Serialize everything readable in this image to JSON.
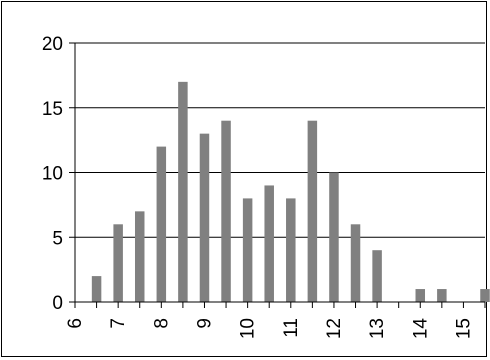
{
  "chart_data": {
    "type": "bar",
    "title": "",
    "xlabel": "",
    "ylabel": "",
    "ylim": [
      0,
      20
    ],
    "yticks": [
      "0",
      "5",
      "10",
      "15",
      "20"
    ],
    "xlim": [
      6,
      15.5
    ],
    "xticks": [
      "6",
      "7",
      "8",
      "9",
      "10",
      "11",
      "12",
      "13",
      "14",
      "15"
    ],
    "grid": true,
    "x": [
      6.5,
      7,
      7.5,
      8,
      8.5,
      9,
      9.5,
      10,
      10.5,
      11,
      11.5,
      12,
      12.5,
      13,
      14,
      14.5,
      15.5
    ],
    "values": [
      2,
      6,
      7,
      12,
      17,
      13,
      14,
      8,
      9,
      8,
      14,
      10,
      6,
      4,
      1,
      1,
      1
    ],
    "colors": {
      "bar": "#808080",
      "grid": "#000000",
      "axis": "#000000"
    }
  }
}
